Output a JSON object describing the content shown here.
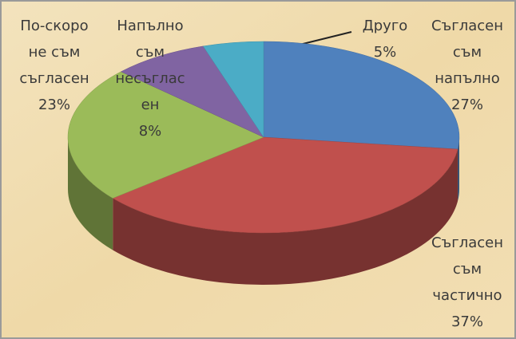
{
  "chart_data": {
    "type": "pie",
    "categories": [
      "Съгласен\nсъм\nнапълно",
      "Съгласен\nсъм\nчастично",
      "По-скоро\nне съм\nсъгласен",
      "Напълно\nсъм\nнесъглас\nен",
      "Друго"
    ],
    "values": [
      27,
      37,
      23,
      8,
      5
    ],
    "value_labels": [
      "27%",
      "37%",
      "23%",
      "8%",
      "5%"
    ],
    "colors": [
      "#4f81bd",
      "#c0504d",
      "#9bbb59",
      "#8064a2",
      "#4bacc6"
    ]
  }
}
